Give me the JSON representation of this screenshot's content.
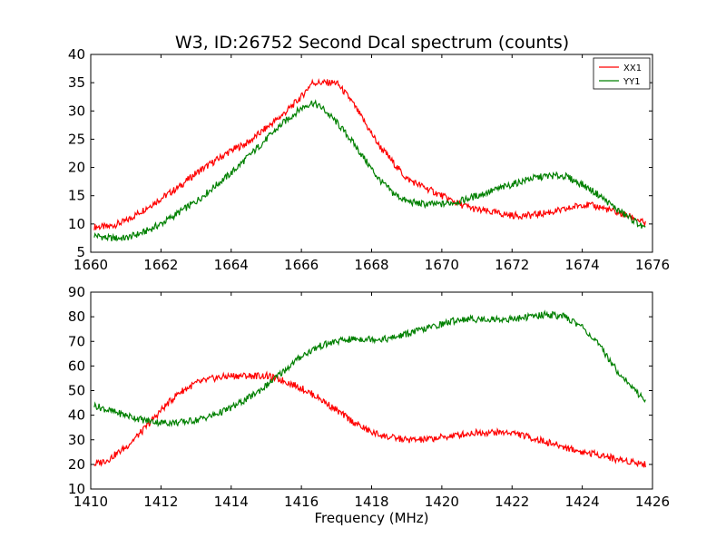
{
  "figure": {
    "title": "W3, ID:26752 Second Dcal spectrum (counts)"
  },
  "chart_data": [
    {
      "type": "line",
      "title": "W3, ID:26752 Second Dcal spectrum (counts)",
      "xlabel": "",
      "ylabel": "",
      "xlim": [
        1660,
        1676
      ],
      "ylim": [
        5,
        40
      ],
      "xticks": [
        1660,
        1662,
        1664,
        1666,
        1668,
        1670,
        1672,
        1674,
        1676
      ],
      "yticks": [
        5,
        10,
        15,
        20,
        25,
        30,
        35,
        40
      ],
      "grid": false,
      "legend": {
        "position": "top-right",
        "entries": [
          "XX1",
          "YY1"
        ]
      },
      "series": [
        {
          "name": "XX1",
          "color": "#ff0000",
          "x": [
            1660.1,
            1660.5,
            1661.0,
            1661.5,
            1662.0,
            1662.5,
            1663.0,
            1663.5,
            1664.0,
            1664.5,
            1665.0,
            1665.5,
            1666.0,
            1666.3,
            1666.6,
            1667.0,
            1667.4,
            1667.8,
            1668.2,
            1668.6,
            1669.0,
            1669.5,
            1670.0,
            1670.5,
            1671.0,
            1671.5,
            1672.0,
            1672.5,
            1673.0,
            1673.5,
            1674.0,
            1674.5,
            1675.0,
            1675.5,
            1675.8
          ],
          "y": [
            9.5,
            9.5,
            10.5,
            12.5,
            14.5,
            16.5,
            19.0,
            21.0,
            23.0,
            24.5,
            27.0,
            29.5,
            32.5,
            35.0,
            35.0,
            35.0,
            32.0,
            28.0,
            24.0,
            21.0,
            18.0,
            16.5,
            15.0,
            13.5,
            12.5,
            12.0,
            11.5,
            11.5,
            12.0,
            12.5,
            13.5,
            13.0,
            12.0,
            11.0,
            10.0
          ]
        },
        {
          "name": "YY1",
          "color": "#008000",
          "x": [
            1660.1,
            1660.5,
            1661.0,
            1661.5,
            1662.0,
            1662.5,
            1663.0,
            1663.5,
            1664.0,
            1664.5,
            1665.0,
            1665.5,
            1666.0,
            1666.3,
            1666.6,
            1667.0,
            1667.4,
            1667.8,
            1668.2,
            1668.6,
            1669.0,
            1669.5,
            1670.0,
            1670.5,
            1671.0,
            1671.5,
            1672.0,
            1672.5,
            1673.0,
            1673.5,
            1674.0,
            1674.5,
            1675.0,
            1675.5,
            1675.8
          ],
          "y": [
            8.0,
            7.5,
            7.5,
            8.5,
            10.0,
            12.0,
            14.0,
            16.5,
            19.0,
            22.0,
            25.0,
            28.0,
            30.5,
            31.5,
            30.5,
            28.0,
            25.0,
            21.5,
            18.0,
            15.5,
            14.0,
            13.5,
            13.5,
            14.0,
            15.0,
            16.0,
            17.0,
            18.0,
            18.5,
            18.5,
            17.0,
            15.0,
            12.5,
            10.5,
            9.0
          ]
        }
      ]
    },
    {
      "type": "line",
      "title": "",
      "xlabel": "Frequency (MHz)",
      "ylabel": "",
      "xlim": [
        1410,
        1426
      ],
      "ylim": [
        10,
        90
      ],
      "xticks": [
        1410,
        1412,
        1414,
        1416,
        1418,
        1420,
        1422,
        1424,
        1426
      ],
      "yticks": [
        10,
        20,
        30,
        40,
        50,
        60,
        70,
        80,
        90
      ],
      "grid": false,
      "series": [
        {
          "color": "#ff0000",
          "x": [
            1410.1,
            1410.5,
            1411.0,
            1411.5,
            1412.0,
            1412.5,
            1413.0,
            1413.5,
            1414.0,
            1414.5,
            1415.0,
            1415.5,
            1416.0,
            1416.5,
            1417.0,
            1417.5,
            1418.0,
            1418.5,
            1419.0,
            1419.5,
            1420.0,
            1420.5,
            1421.0,
            1421.5,
            1422.0,
            1422.5,
            1423.0,
            1423.5,
            1424.0,
            1424.5,
            1425.0,
            1425.5,
            1425.8
          ],
          "y": [
            20,
            22,
            27,
            34,
            42,
            49,
            53,
            55,
            56,
            56,
            56,
            54,
            51,
            47,
            42,
            37,
            33,
            31,
            30,
            30,
            31,
            32,
            33,
            33,
            33,
            31,
            29,
            27,
            25,
            24,
            22,
            21,
            20
          ]
        },
        {
          "color": "#008000",
          "x": [
            1410.1,
            1410.5,
            1411.0,
            1411.5,
            1412.0,
            1412.5,
            1413.0,
            1413.5,
            1414.0,
            1414.5,
            1415.0,
            1415.5,
            1416.0,
            1416.5,
            1417.0,
            1417.5,
            1418.0,
            1418.5,
            1419.0,
            1419.5,
            1420.0,
            1420.5,
            1421.0,
            1421.5,
            1422.0,
            1422.5,
            1423.0,
            1423.5,
            1424.0,
            1424.5,
            1425.0,
            1425.5,
            1425.8
          ],
          "y": [
            44,
            42,
            40,
            38,
            37,
            37,
            38,
            40,
            43,
            47,
            52,
            58,
            64,
            68,
            70,
            71,
            71,
            71,
            73,
            75,
            77,
            79,
            79,
            79,
            79,
            80,
            81,
            80,
            76,
            68,
            58,
            50,
            46
          ]
        }
      ]
    }
  ]
}
